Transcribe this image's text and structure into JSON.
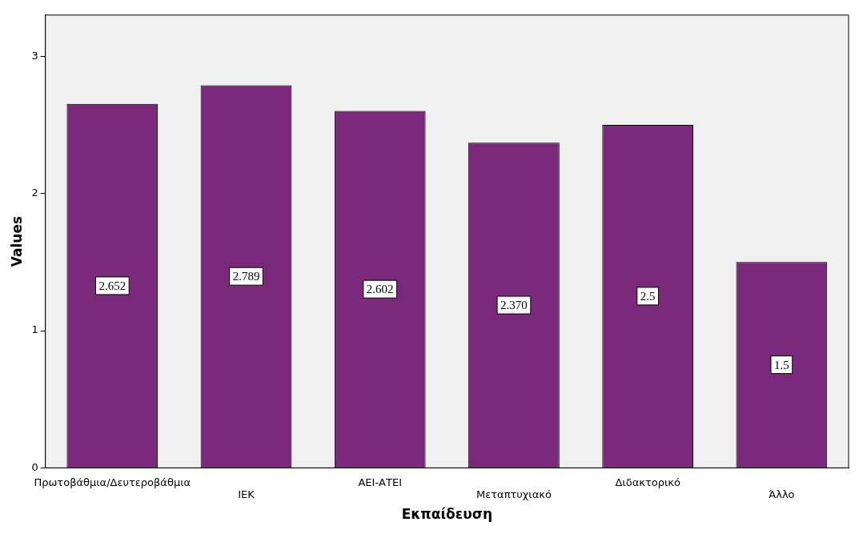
{
  "chart_data": {
    "type": "bar",
    "xlabel": "Εκπαίδευση",
    "ylabel": "Values",
    "categories": [
      "Πρωτοβάθμια/Δευτεροβάθμια",
      "ΙΕΚ",
      "ΑΕΙ-ΑΤΕΙ",
      "Μεταπτυχιακό",
      "Διδακτορικό",
      "Άλλο"
    ],
    "values": [
      2.652,
      2.789,
      2.602,
      2.37,
      2.5,
      1.5
    ],
    "value_labels": [
      "2.652",
      "2.789",
      "2.602",
      "2.370",
      "2.5",
      "1.5"
    ],
    "color": "#7b2a7b",
    "ylim": [
      0,
      3.3
    ],
    "yticks": [
      0,
      1,
      2,
      3
    ],
    "grid": false,
    "legend": false
  }
}
